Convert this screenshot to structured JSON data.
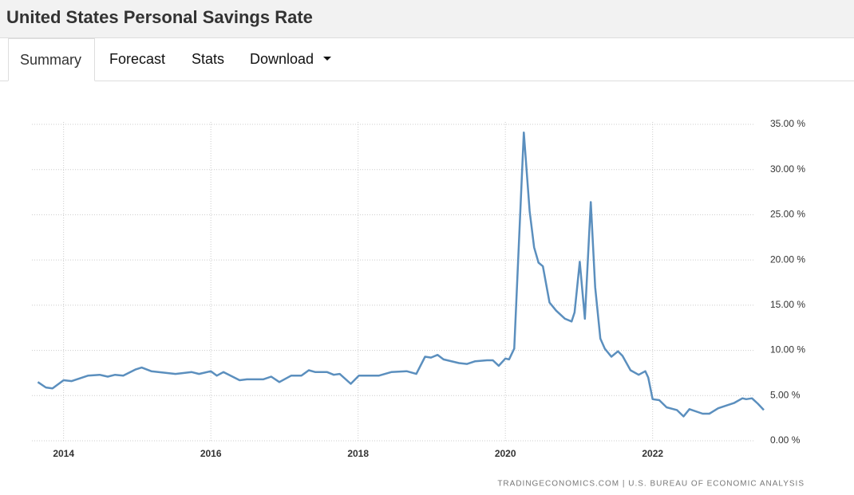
{
  "header": {
    "title": "United States Personal Savings Rate"
  },
  "tabs": [
    "Summary",
    "Forecast",
    "Stats",
    "Download"
  ],
  "chart_data": {
    "type": "line",
    "x": [
      2013.65,
      2013.76,
      2013.85,
      2014.0,
      2014.11,
      2014.33,
      2014.49,
      2014.6,
      2014.7,
      2014.81,
      2014.98,
      2015.06,
      2015.19,
      2015.52,
      2015.74,
      2015.84,
      2016.0,
      2016.08,
      2016.17,
      2016.39,
      2016.49,
      2016.71,
      2016.82,
      2016.93,
      2017.09,
      2017.23,
      2017.33,
      2017.42,
      2017.58,
      2017.67,
      2017.75,
      2017.9,
      2018.01,
      2018.28,
      2018.45,
      2018.66,
      2018.79,
      2018.91,
      2018.99,
      2019.08,
      2019.16,
      2019.37,
      2019.48,
      2019.59,
      2019.75,
      2019.83,
      2019.91,
      2020.0,
      2020.05,
      2020.12,
      2020.25,
      2020.33,
      2020.39,
      2020.45,
      2020.51,
      2020.6,
      2020.69,
      2020.81,
      2020.9,
      2020.94,
      2021.01,
      2021.08,
      2021.16,
      2021.22,
      2021.29,
      2021.35,
      2021.44,
      2021.53,
      2021.59,
      2021.7,
      2021.81,
      2021.9,
      2021.94,
      2022.0,
      2022.09,
      2022.19,
      2022.33,
      2022.42,
      2022.5,
      2022.68,
      2022.77,
      2022.89,
      2023.11,
      2023.22,
      2023.27,
      2023.35,
      2023.43,
      2023.51
    ],
    "values": [
      6.5,
      5.9,
      5.8,
      6.7,
      6.6,
      7.2,
      7.3,
      7.1,
      7.3,
      7.2,
      7.9,
      8.1,
      7.7,
      7.4,
      7.6,
      7.4,
      7.7,
      7.2,
      7.6,
      6.7,
      6.8,
      6.8,
      7.1,
      6.5,
      7.2,
      7.2,
      7.8,
      7.6,
      7.6,
      7.3,
      7.4,
      6.3,
      7.2,
      7.2,
      7.6,
      7.7,
      7.4,
      9.3,
      9.2,
      9.5,
      9.0,
      8.6,
      8.5,
      8.8,
      8.9,
      8.9,
      8.3,
      9.1,
      9.0,
      10.2,
      34.1,
      25.4,
      21.4,
      19.7,
      19.3,
      15.3,
      14.4,
      13.5,
      13.2,
      14.2,
      19.8,
      13.5,
      26.4,
      17.0,
      11.3,
      10.2,
      9.3,
      9.9,
      9.4,
      7.8,
      7.3,
      7.7,
      7.0,
      4.6,
      4.5,
      3.7,
      3.4,
      2.7,
      3.5,
      3.0,
      3.0,
      3.6,
      4.2,
      4.7,
      4.6,
      4.7,
      4.1,
      3.4
    ],
    "color": "#5b8fbe",
    "xlim": [
      2013.57,
      2023.51
    ],
    "xticks": [
      2014,
      2016,
      2018,
      2020,
      2022
    ],
    "ylim": [
      0,
      35
    ],
    "yticks": [
      {
        "value": 0,
        "label": "0.00 %"
      },
      {
        "value": 5,
        "label": "5.00 %"
      },
      {
        "value": 10,
        "label": "10.00 %"
      },
      {
        "value": 15,
        "label": "15.00 %"
      },
      {
        "value": 20,
        "label": "20.00 %"
      },
      {
        "value": 25,
        "label": "25.00 %"
      },
      {
        "value": 30,
        "label": "30.00 %"
      },
      {
        "value": 35,
        "label": "35.00 %"
      }
    ],
    "grid": true,
    "source": "TRADINGECONOMICS.COM | U.S. BUREAU OF ECONOMIC ANALYSIS"
  }
}
